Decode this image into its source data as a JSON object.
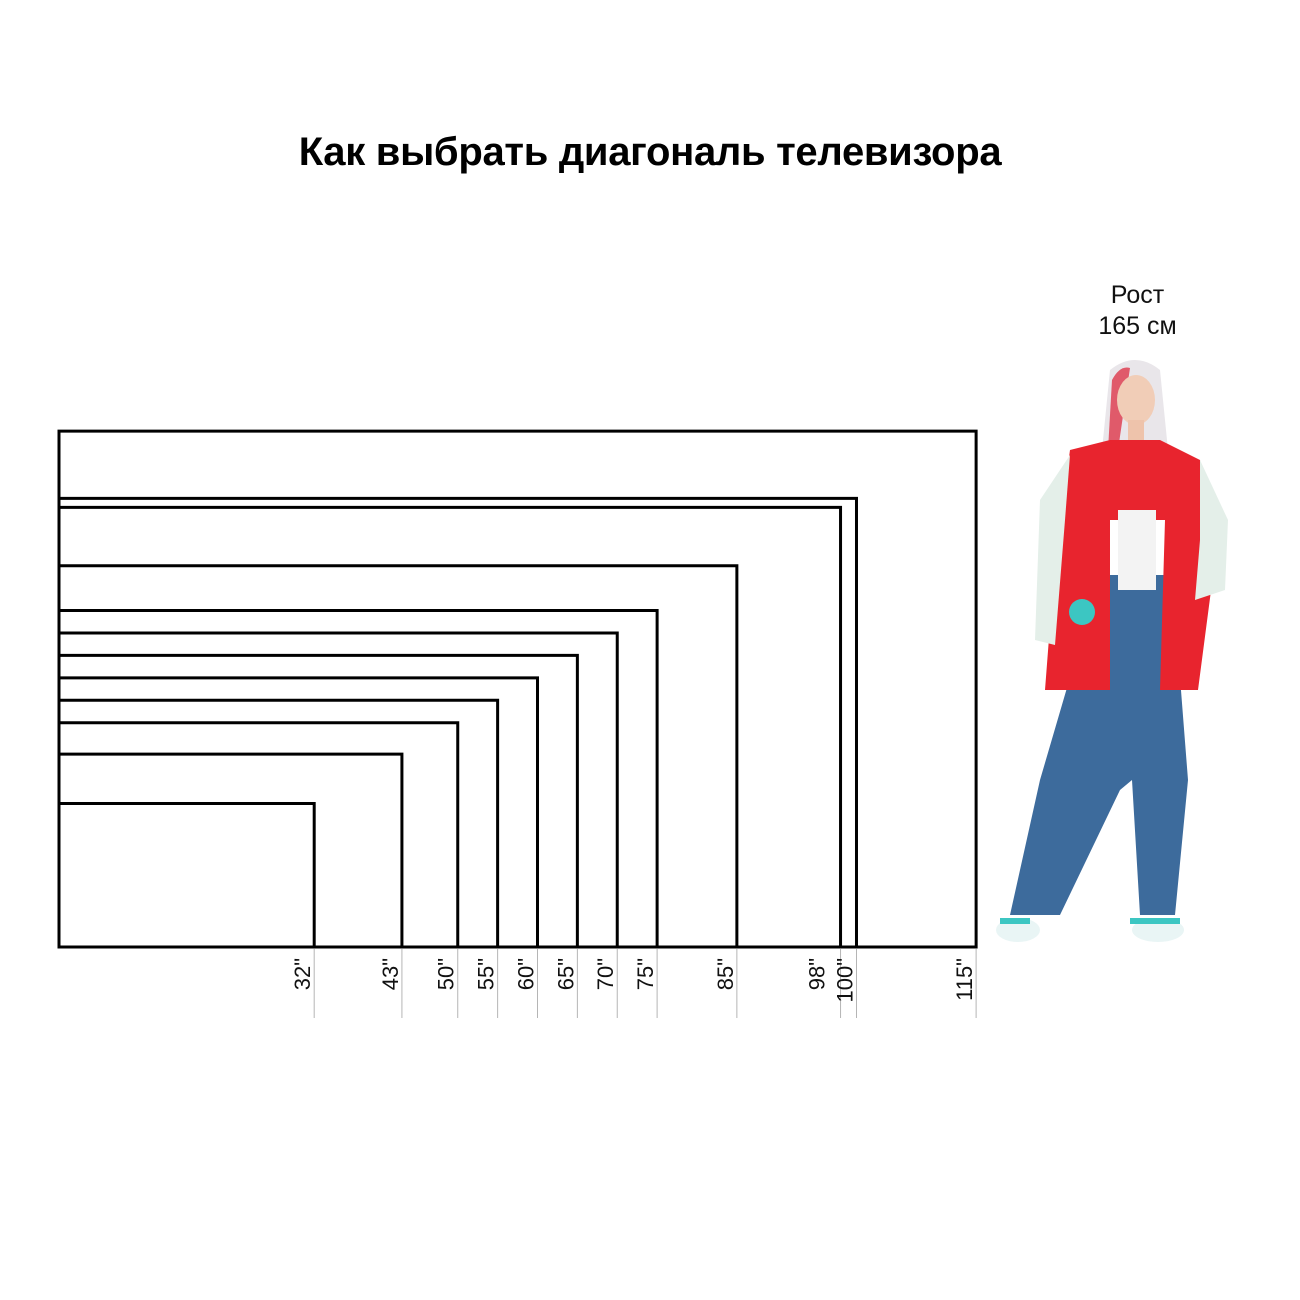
{
  "title": "Как выбрать диагональ телевизора",
  "person": {
    "height_line1": "Рост",
    "height_line2": "165 см"
  },
  "diagonals": [
    {
      "value": 32,
      "label": "32\""
    },
    {
      "value": 43,
      "label": "43\""
    },
    {
      "value": 50,
      "label": "50\""
    },
    {
      "value": 55,
      "label": "55\""
    },
    {
      "value": 60,
      "label": "60\""
    },
    {
      "value": 65,
      "label": "65\""
    },
    {
      "value": 70,
      "label": "70\""
    },
    {
      "value": 75,
      "label": "75\""
    },
    {
      "value": 85,
      "label": "85\""
    },
    {
      "value": 98,
      "label": "98\""
    },
    {
      "value": 100,
      "label": "100\""
    },
    {
      "value": 115,
      "label": "115\""
    }
  ],
  "aspect_ratio": "16:9",
  "colors": {
    "frame": "#000000",
    "tick": "#b5b5b5",
    "jacket": "#e8242e",
    "jeans": "#3d6b9c"
  }
}
